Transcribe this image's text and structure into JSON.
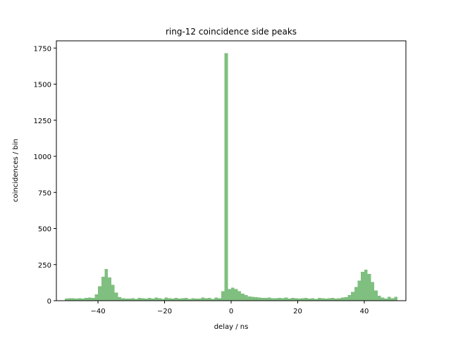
{
  "chart_data": {
    "type": "bar",
    "title": "ring-12 coincidence side peaks",
    "xlabel": "delay / ns",
    "ylabel": "coincidences / bin",
    "xlim": [
      -52.5,
      52.5
    ],
    "ylim": [
      0,
      1800
    ],
    "xticks": [
      -40,
      -20,
      0,
      20,
      40
    ],
    "yticks": [
      0,
      250,
      500,
      750,
      1000,
      1250,
      1500,
      1750
    ],
    "bin_start": -50,
    "bin_width": 1,
    "color": "#7fbf7f",
    "grid": false,
    "values": [
      15,
      18,
      16,
      14,
      17,
      15,
      19,
      22,
      20,
      45,
      100,
      165,
      220,
      160,
      110,
      55,
      25,
      18,
      15,
      14,
      18,
      12,
      20,
      17,
      15,
      19,
      14,
      21,
      16,
      13,
      22,
      17,
      15,
      19,
      14,
      16,
      20,
      13,
      18,
      15,
      14,
      21,
      17,
      19,
      12,
      22,
      18,
      65,
      1715,
      80,
      90,
      80,
      65,
      50,
      40,
      30,
      28,
      25,
      22,
      20,
      19,
      21,
      18,
      16,
      20,
      17,
      22,
      15,
      19,
      18,
      14,
      16,
      20,
      15,
      17,
      13,
      19,
      18,
      14,
      16,
      20,
      15,
      17,
      22,
      25,
      40,
      60,
      95,
      140,
      200,
      215,
      185,
      130,
      70,
      35,
      22,
      15,
      28,
      18,
      28
    ]
  }
}
